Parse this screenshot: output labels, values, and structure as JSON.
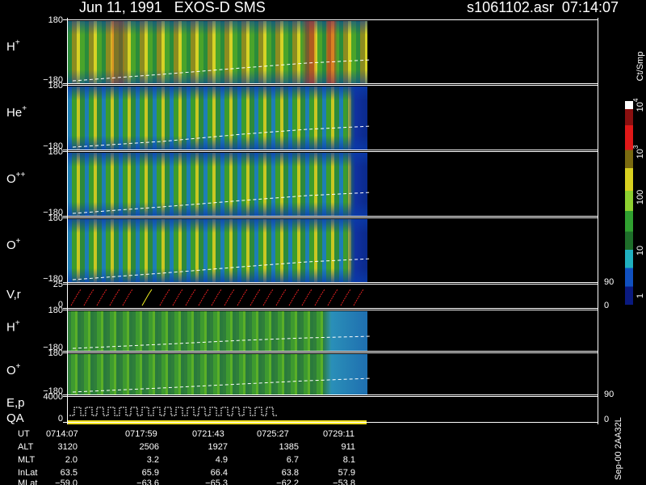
{
  "header": {
    "title": "Jun 11, 1991   EXOS-D SMS",
    "file": "s1061102.asr  07:14:07"
  },
  "panels": [
    {
      "label": "H",
      "sup": "+",
      "top": "180",
      "bottom": "−180"
    },
    {
      "label": "He",
      "sup": "+",
      "top": "180",
      "bottom": "−180"
    },
    {
      "label": "O",
      "sup": "++",
      "top": "180",
      "bottom": "−180"
    },
    {
      "label": "O",
      "sup": "+",
      "top": "180",
      "bottom": "−180"
    },
    {
      "label": "V,r",
      "top": "25",
      "bottom": "0",
      "right_top": "90",
      "right_bottom": "0"
    },
    {
      "label": "H",
      "sup": "+",
      "top": "180",
      "bottom": "−180"
    },
    {
      "label": "O",
      "sup": "+",
      "top": "180",
      "bottom": "−180"
    },
    {
      "label": "E,p",
      "label2": "QA",
      "top": "4000",
      "bottom": "0",
      "right_top": "90",
      "right_bottom": "0"
    }
  ],
  "colorbar": {
    "unit": "Ct/Smp",
    "ticks": [
      {
        "base": "10",
        "sup": "4"
      },
      {
        "base": "10",
        "sup": "3"
      },
      {
        "base": "100"
      },
      {
        "base": "10"
      },
      {
        "base": "1"
      }
    ]
  },
  "footer": {
    "rows": [
      {
        "label": "UT",
        "values": [
          "0714:07",
          "0717:59",
          "0721:43",
          "0725:27",
          "0729:11"
        ]
      },
      {
        "label": "ALT",
        "values": [
          "3120",
          "2506",
          "1927",
          "1385",
          "911"
        ]
      },
      {
        "label": "MLT",
        "values": [
          "2.0",
          "3.2",
          "4.9",
          "6.7",
          "8.1"
        ]
      },
      {
        "label": "InLat",
        "values": [
          "63.5",
          "65.9",
          "66.4",
          "63.8",
          "57.9"
        ]
      },
      {
        "label": "MLat",
        "values": [
          "−59.0",
          "−63.6",
          "−65.3",
          "−62.2",
          "−53.8"
        ]
      }
    ],
    "stamp": "Sep-00  2AA32L"
  }
}
